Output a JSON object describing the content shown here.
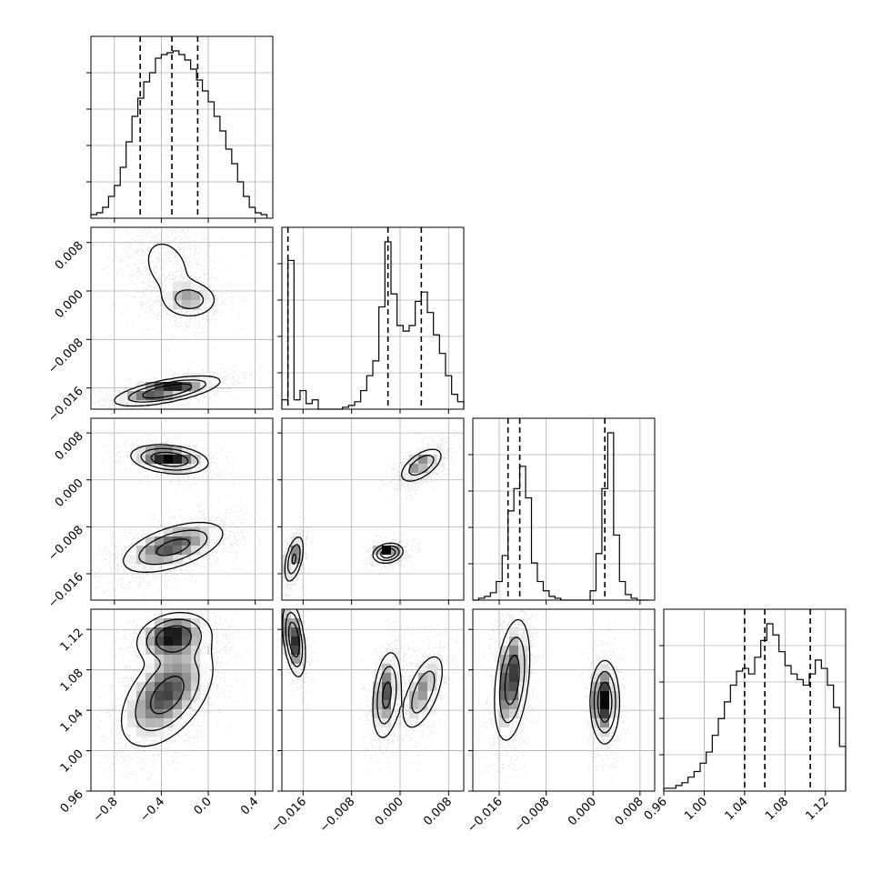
{
  "chart_data": {
    "type": "corner",
    "parameters": [
      {
        "range": [
          -1.0,
          0.55
        ],
        "ticks": [
          -0.8,
          -0.4,
          0.0,
          0.4
        ],
        "tick_labels": [
          "−0.8",
          "−0.4",
          "0.0",
          "0.4"
        ]
      },
      {
        "range": [
          -0.0195,
          0.0105
        ],
        "ticks": [
          -0.016,
          -0.008,
          0.0,
          0.008
        ],
        "tick_labels": [
          "−0.016",
          "−0.008",
          "0.000",
          "0.008"
        ]
      },
      {
        "range": [
          -0.0205,
          0.0105
        ],
        "ticks": [
          -0.016,
          -0.008,
          0.0,
          0.008
        ],
        "tick_labels": [
          "−0.016",
          "−0.008",
          "0.000",
          "0.008"
        ]
      },
      {
        "range": [
          0.96,
          1.14
        ],
        "ticks": [
          0.96,
          1.0,
          1.04,
          1.08,
          1.12
        ],
        "tick_labels": [
          "0.96",
          "1.00",
          "1.04",
          "1.08",
          "1.12"
        ]
      }
    ],
    "histograms": [
      {
        "param": 0,
        "quantiles": [
          -0.58,
          -0.31,
          -0.09
        ],
        "bins": [
          -1.0,
          -0.95,
          -0.9,
          -0.85,
          -0.8,
          -0.75,
          -0.7,
          -0.65,
          -0.6,
          -0.55,
          -0.5,
          -0.45,
          -0.4,
          -0.35,
          -0.3,
          -0.25,
          -0.2,
          -0.15,
          -0.1,
          -0.05,
          0.0,
          0.05,
          0.1,
          0.15,
          0.2,
          0.25,
          0.3,
          0.35,
          0.4,
          0.45,
          0.5
        ],
        "counts": [
          2,
          3,
          6,
          12,
          18,
          28,
          42,
          56,
          66,
          75,
          80,
          88,
          90,
          91,
          92,
          90,
          87,
          82,
          76,
          70,
          64,
          56,
          48,
          38,
          30,
          20,
          12,
          6,
          3,
          2
        ]
      },
      {
        "param": 1,
        "quantiles": [
          -0.0185,
          -0.002,
          0.0035
        ],
        "bins": [
          -0.0195,
          -0.0185,
          -0.0175,
          -0.0165,
          -0.0155,
          -0.0145,
          -0.0135,
          -0.0125,
          -0.0115,
          -0.0105,
          -0.0095,
          -0.0085,
          -0.0075,
          -0.0065,
          -0.0055,
          -0.0045,
          -0.0035,
          -0.0025,
          -0.0015,
          -0.0005,
          0.0005,
          0.0015,
          0.0025,
          0.0035,
          0.0045,
          0.0055,
          0.0065,
          0.0075,
          0.0085,
          0.0095,
          0.0105
        ],
        "counts": [
          5,
          80,
          5,
          10,
          3,
          5,
          0,
          0,
          0,
          0,
          1,
          2,
          4,
          10,
          18,
          26,
          55,
          90,
          62,
          45,
          42,
          45,
          58,
          63,
          52,
          40,
          30,
          18,
          8,
          4
        ]
      },
      {
        "param": 2,
        "quantiles": [
          -0.0145,
          -0.0125,
          0.002
        ],
        "bins": [
          -0.0205,
          -0.0195,
          -0.0185,
          -0.0175,
          -0.0165,
          -0.0155,
          -0.0145,
          -0.0135,
          -0.0125,
          -0.0115,
          -0.0105,
          -0.0095,
          -0.0085,
          -0.0075,
          -0.0065,
          -0.0055,
          -0.0045,
          -0.0035,
          -0.0025,
          -0.0015,
          -0.0005,
          0.0005,
          0.0015,
          0.0025,
          0.0035,
          0.0045,
          0.0055,
          0.0065,
          0.0075,
          0.0085,
          0.0095
        ],
        "counts": [
          0,
          1,
          2,
          4,
          10,
          24,
          48,
          60,
          72,
          55,
          20,
          10,
          5,
          2,
          1,
          0,
          0,
          0,
          0,
          0,
          5,
          25,
          60,
          90,
          35,
          10,
          3,
          1,
          0,
          0
        ]
      },
      {
        "param": 3,
        "quantiles": [
          1.04,
          1.06,
          1.105
        ],
        "bins": [
          0.96,
          0.966,
          0.972,
          0.978,
          0.984,
          0.99,
          0.996,
          1.002,
          1.008,
          1.014,
          1.02,
          1.026,
          1.032,
          1.038,
          1.044,
          1.05,
          1.056,
          1.062,
          1.068,
          1.074,
          1.08,
          1.086,
          1.092,
          1.098,
          1.104,
          1.11,
          1.116,
          1.122,
          1.128,
          1.134,
          1.14
        ],
        "counts": [
          1,
          1,
          2,
          3,
          5,
          7,
          10,
          14,
          20,
          26,
          32,
          38,
          43,
          44,
          42,
          48,
          54,
          60,
          56,
          50,
          45,
          42,
          40,
          38,
          42,
          47,
          44,
          38,
          30,
          16
        ]
      }
    ],
    "panels_2d": [
      {
        "x_param": 0,
        "y_param": 1,
        "blobs": [
          {
            "mx": -0.35,
            "my": 0.004,
            "sx": 0.17,
            "sy": 0.004,
            "rho": -0.3,
            "w": 0.3
          },
          {
            "mx": -0.15,
            "my": -0.0015,
            "sx": 0.12,
            "sy": 0.0015,
            "rho": 0.0,
            "w": 0.2
          },
          {
            "mx": -0.35,
            "my": -0.0165,
            "sx": 0.22,
            "sy": 0.0012,
            "rho": 0.65,
            "w": 0.5
          }
        ]
      },
      {
        "x_param": 0,
        "y_param": 2,
        "blobs": [
          {
            "mx": -0.33,
            "my": 0.0035,
            "sx": 0.16,
            "sy": 0.0012,
            "rho": -0.25,
            "w": 0.38
          },
          {
            "mx": -0.3,
            "my": -0.0115,
            "sx": 0.22,
            "sy": 0.0022,
            "rho": 0.55,
            "w": 0.62
          }
        ]
      },
      {
        "x_param": 1,
        "y_param": 2,
        "blobs": [
          {
            "mx": 0.0035,
            "my": 0.0025,
            "sx": 0.0018,
            "sy": 0.0015,
            "rho": 0.6,
            "w": 0.4
          },
          {
            "mx": -0.002,
            "my": -0.0125,
            "sx": 0.0012,
            "sy": 0.0008,
            "rho": 0.2,
            "w": 0.3
          },
          {
            "mx": -0.0175,
            "my": -0.0135,
            "sx": 0.0008,
            "sy": 0.002,
            "rho": 0.5,
            "w": 0.3
          }
        ]
      },
      {
        "x_param": 0,
        "y_param": 3,
        "blobs": [
          {
            "mx": -0.35,
            "my": 1.055,
            "sx": 0.2,
            "sy": 0.026,
            "rho": 0.5,
            "w": 0.68
          },
          {
            "mx": -0.3,
            "my": 1.112,
            "sx": 0.15,
            "sy": 0.012,
            "rho": 0.2,
            "w": 0.32
          }
        ]
      },
      {
        "x_param": 1,
        "y_param": 3,
        "blobs": [
          {
            "mx": -0.0175,
            "my": 1.11,
            "sx": 0.0009,
            "sy": 0.018,
            "rho": -0.4,
            "w": 0.3
          },
          {
            "mx": -0.0022,
            "my": 1.055,
            "sx": 0.0012,
            "sy": 0.022,
            "rho": 0.3,
            "w": 0.38
          },
          {
            "mx": 0.0038,
            "my": 1.058,
            "sx": 0.0018,
            "sy": 0.02,
            "rho": 0.6,
            "w": 0.32
          }
        ]
      },
      {
        "x_param": 2,
        "y_param": 3,
        "blobs": [
          {
            "mx": -0.0138,
            "my": 1.07,
            "sx": 0.0015,
            "sy": 0.03,
            "rho": 0.35,
            "w": 0.6
          },
          {
            "mx": 0.002,
            "my": 1.048,
            "sx": 0.0012,
            "sy": 0.02,
            "rho": 0.0,
            "w": 0.4
          }
        ]
      }
    ],
    "grid": true
  }
}
